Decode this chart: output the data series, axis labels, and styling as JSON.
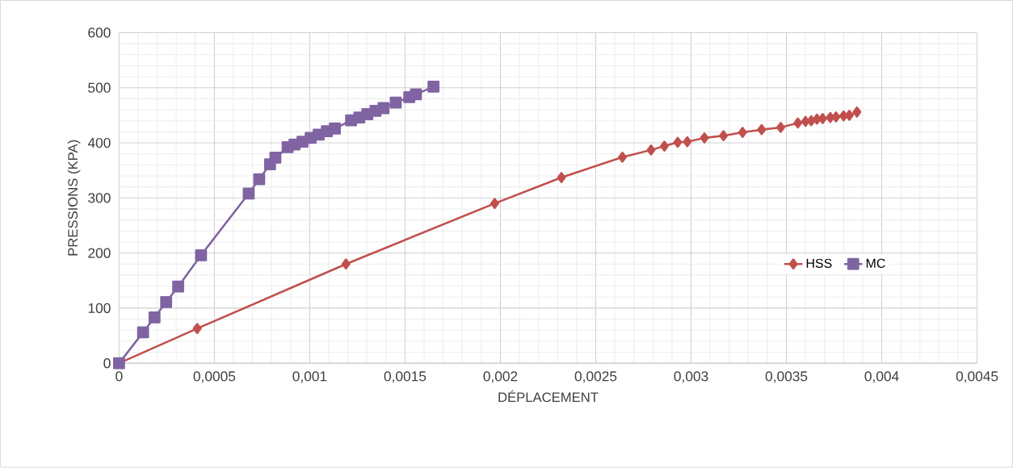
{
  "chart_data": {
    "type": "line",
    "xlabel": "DÉPLACEMENT",
    "ylabel": "PRESSIONS (KPA)",
    "xlim": [
      0,
      0.0045
    ],
    "ylim": [
      0,
      600
    ],
    "xticks": [
      0,
      {
        "value": 0.0005,
        "label": "0,0005"
      },
      {
        "value": 0.001,
        "label": "0,001"
      },
      {
        "value": 0.0015,
        "label": "0,0015"
      },
      {
        "value": 0.002,
        "label": "0,002"
      },
      {
        "value": 0.0025,
        "label": "0,0025"
      },
      {
        "value": 0.003,
        "label": "0,003"
      },
      {
        "value": 0.0035,
        "label": "0,0035"
      },
      {
        "value": 0.004,
        "label": "0,004"
      },
      {
        "value": 0.0045,
        "label": "0,0045"
      }
    ],
    "yticks": [
      0,
      100,
      200,
      300,
      400,
      500,
      600
    ],
    "grid": true,
    "legend": "right",
    "series": [
      {
        "name": "HSS",
        "color": "#c0504d",
        "marker": "diamond",
        "x": [
          0,
          0.00041,
          0.00119,
          0.00197,
          0.00232,
          0.00264,
          0.00279,
          0.00286,
          0.00293,
          0.00298,
          0.00307,
          0.00317,
          0.00327,
          0.00337,
          0.00347,
          0.00356,
          0.0036,
          0.00363,
          0.00366,
          0.00369,
          0.00373,
          0.00376,
          0.0038,
          0.00383,
          0.00387
        ],
        "values": [
          0,
          63,
          180,
          290,
          337,
          374,
          387,
          394,
          401,
          402,
          409,
          413,
          419,
          424,
          428,
          436,
          439,
          440,
          443,
          444,
          446,
          447,
          449,
          450,
          456
        ]
      },
      {
        "name": "MC",
        "color": "#8064a2",
        "marker": "square",
        "x": [
          0,
          0.000126,
          0.000186,
          0.000247,
          0.00031,
          0.00043,
          0.00068,
          0.000735,
          0.000792,
          0.00082,
          0.000884,
          0.00092,
          0.000962,
          0.001005,
          0.001047,
          0.00109,
          0.001132,
          0.001217,
          0.00126,
          0.001302,
          0.001345,
          0.001387,
          0.001451,
          0.001522,
          0.001557,
          0.001649
        ],
        "values": [
          0,
          56,
          83,
          111,
          139,
          196,
          308,
          334,
          361,
          373,
          392,
          397,
          402,
          409,
          415,
          421,
          426,
          441,
          446,
          452,
          458,
          463,
          473,
          483,
          488,
          502
        ]
      }
    ]
  }
}
